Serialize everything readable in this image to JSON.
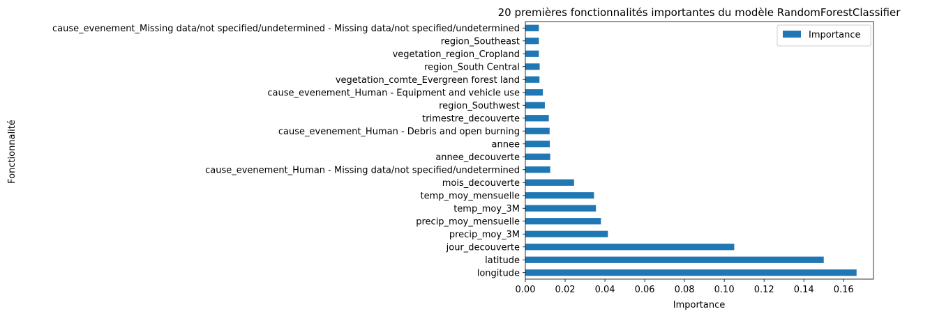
{
  "chart_data": {
    "type": "bar",
    "orientation": "horizontal",
    "title": "20 premières fonctionnalités importantes du modèle RandomForestClassifier",
    "xlabel": "Importance",
    "ylabel": "Fonctionnalité",
    "xlim": [
      0,
      0.175
    ],
    "xticks": [
      "0.00",
      "0.02",
      "0.04",
      "0.06",
      "0.08",
      "0.10",
      "0.12",
      "0.14",
      "0.16"
    ],
    "grid": false,
    "legend_position": "top-right",
    "bar_color": "#1f77b4",
    "series": [
      {
        "name": "Importance",
        "categories": [
          "longitude",
          "latitude",
          "jour_decouverte",
          "precip_moy_3M",
          "precip_moy_mensuelle",
          "temp_moy_3M",
          "temp_moy_mensuelle",
          "mois_decouverte",
          "cause_evenement_Human - Missing data/not specified/undetermined",
          "annee_decouverte",
          "annee",
          "cause_evenement_Human - Debris and open burning",
          "trimestre_decouverte",
          "region_Southwest",
          "cause_evenement_Human - Equipment and vehicle use",
          "vegetation_comte_Evergreen forest land",
          "region_South Central",
          "vegetation_region_Cropland",
          "region_Southeast",
          "cause_evenement_Missing data/not specified/undetermined - Missing data/not specified/undetermined"
        ],
        "values": [
          0.1665,
          0.15,
          0.105,
          0.0415,
          0.038,
          0.0355,
          0.0345,
          0.0245,
          0.0125,
          0.0125,
          0.0123,
          0.0122,
          0.0118,
          0.0098,
          0.0088,
          0.0071,
          0.0072,
          0.0068,
          0.0068,
          0.0068
        ]
      }
    ]
  }
}
